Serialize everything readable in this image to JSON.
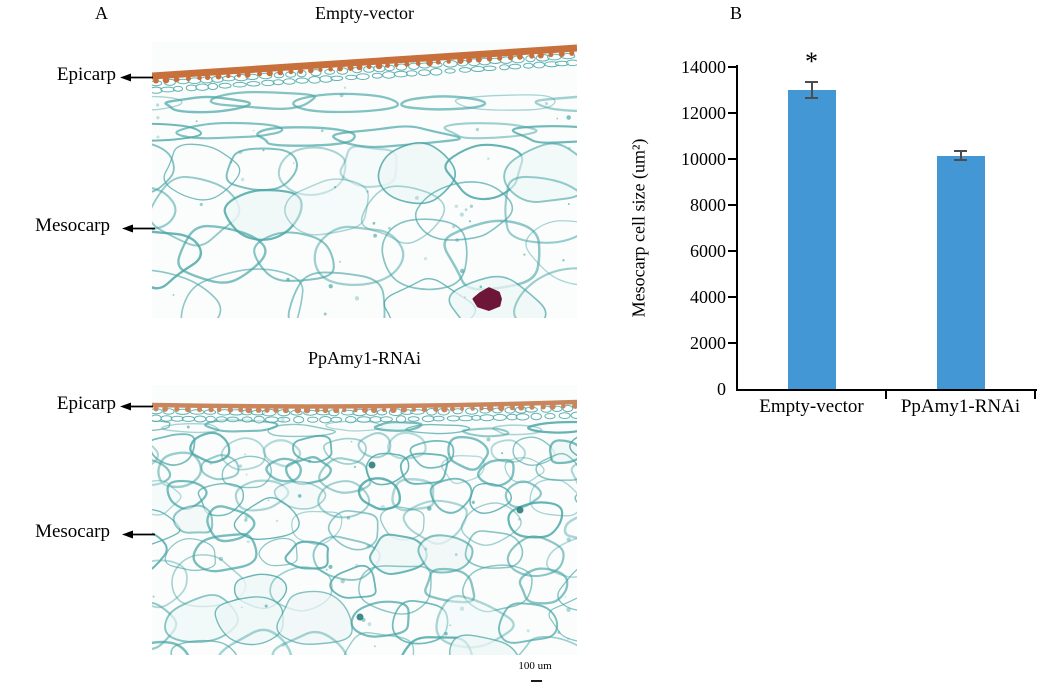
{
  "figure": {
    "panel_a": {
      "label": "A",
      "micrographs": [
        {
          "title": "Empty-vector"
        },
        {
          "title": "PpAmy1-RNAi"
        }
      ],
      "annotations": {
        "epicarp": "Epicarp",
        "mesocarp": "Mesocarp"
      },
      "scale_bar": "100 um"
    },
    "panel_b": {
      "label": "B"
    }
  },
  "chart_data": {
    "type": "bar",
    "categories": [
      "Empty-vector",
      "PpAmy1-RNAi"
    ],
    "values": [
      13000,
      10150
    ],
    "error_bars": [
      350,
      200
    ],
    "significance": [
      "*",
      ""
    ],
    "title": "",
    "xlabel": "",
    "ylabel": "Mesocarp cell size (um²)",
    "ylim": [
      0,
      14000
    ],
    "ytick_step": 2000,
    "grid": false,
    "legend": null,
    "bar_color": "#4497d5",
    "error_color": "#4d4d4d"
  },
  "colors": {
    "background": "#ffffff",
    "axis": "#000000",
    "micro_background": "#fbfdfd",
    "cell_wall_teal": "#4aa5a5",
    "epicarp_band_1": "#c8703c",
    "epicarp_band_2": "#c9865c",
    "stained_cell_maroon": "#6e1638",
    "text": "#000000"
  }
}
